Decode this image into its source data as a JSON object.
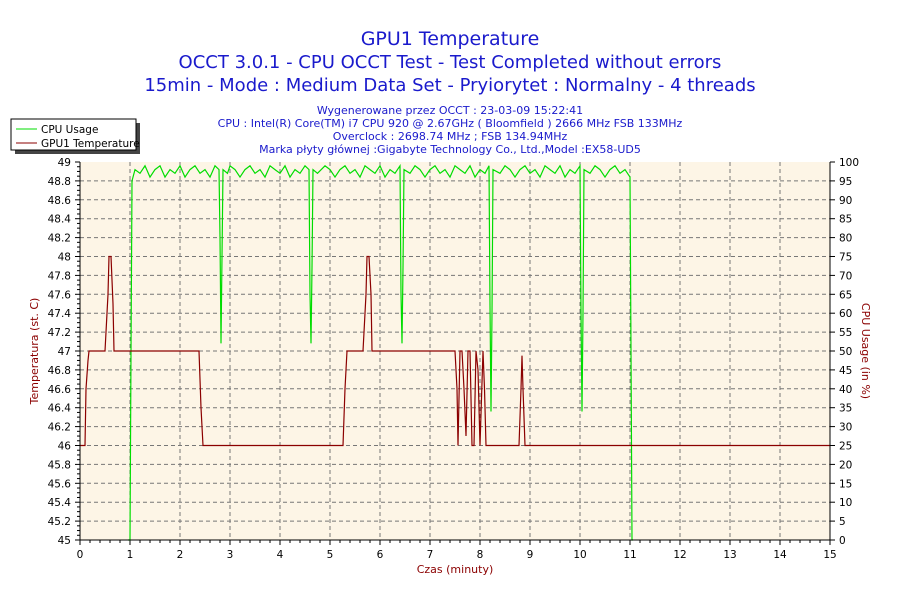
{
  "chart_data": {
    "type": "line",
    "title": "GPU1 Temperature",
    "subtitle_lines": [
      "OCCT 3.0.1 - CPU OCCT Test - Test Completed without errors",
      "15min - Mode : Medium Data Set - Pryiorytet : Normalny - 4 threads"
    ],
    "info_lines": [
      "Wygenerowane przez OCCT : 23-03-09 15:22:41",
      "CPU : Intel(R) Core(TM) i7 CPU 920 @ 2.67GHz ( Bloomfield ) 2666 MHz FSB 133MHz",
      "Overclock : 2698.74 MHz ; FSB 134.94MHz",
      "Marka płyty głównej :Gigabyte Technology Co., Ltd.,Model :EX58-UD5"
    ],
    "xlabel": "Czas (minuty)",
    "ylabel": "Temperatura (st. C)",
    "y2label": "CPU Usage (in %)",
    "xlim": [
      0,
      15
    ],
    "ylim": [
      45,
      49
    ],
    "y2lim": [
      0,
      100
    ],
    "xticks": [
      "0",
      "1",
      "2",
      "3",
      "4",
      "5",
      "6",
      "7",
      "8",
      "9",
      "10",
      "11",
      "12",
      "13",
      "14",
      "15"
    ],
    "yticks": [
      "45",
      "45.2",
      "45.4",
      "45.6",
      "45.8",
      "46",
      "46.2",
      "46.4",
      "46.6",
      "46.8",
      "47",
      "47.2",
      "47.4",
      "47.6",
      "47.8",
      "48",
      "48.2",
      "48.4",
      "48.6",
      "48.8",
      "49"
    ],
    "y2ticks": [
      "0",
      "5",
      "10",
      "15",
      "20",
      "25",
      "30",
      "35",
      "40",
      "45",
      "50",
      "55",
      "60",
      "65",
      "70",
      "75",
      "80",
      "85",
      "90",
      "95",
      "100"
    ],
    "grid": true,
    "legend_position": "top-left",
    "colors": {
      "cpu": "#00dd00",
      "temp": "#8b0000",
      "title": "#1a1acc",
      "plot_bg": "#fdf5e6",
      "axis_label": "#8b0000"
    },
    "series": [
      {
        "name": "CPU Usage",
        "axis": "right",
        "points": [
          [
            0.96,
            0
          ],
          [
            1.0,
            0
          ],
          [
            1.02,
            50
          ],
          [
            1.04,
            95
          ],
          [
            1.1,
            98
          ],
          [
            1.2,
            97
          ],
          [
            1.3,
            99
          ],
          [
            1.4,
            96
          ],
          [
            1.5,
            98
          ],
          [
            1.6,
            99
          ],
          [
            1.7,
            96
          ],
          [
            1.8,
            98
          ],
          [
            1.9,
            97
          ],
          [
            2.0,
            99
          ],
          [
            2.1,
            96
          ],
          [
            2.2,
            98
          ],
          [
            2.3,
            99
          ],
          [
            2.4,
            97
          ],
          [
            2.5,
            98
          ],
          [
            2.6,
            96
          ],
          [
            2.7,
            99
          ],
          [
            2.78,
            98
          ],
          [
            2.8,
            80
          ],
          [
            2.82,
            52
          ],
          [
            2.84,
            75
          ],
          [
            2.86,
            98
          ],
          [
            2.95,
            97
          ],
          [
            3.0,
            99
          ],
          [
            3.1,
            98
          ],
          [
            3.2,
            96
          ],
          [
            3.3,
            98
          ],
          [
            3.4,
            99
          ],
          [
            3.5,
            97
          ],
          [
            3.6,
            98
          ],
          [
            3.7,
            96
          ],
          [
            3.8,
            99
          ],
          [
            3.9,
            98
          ],
          [
            4.0,
            97
          ],
          [
            4.1,
            99
          ],
          [
            4.2,
            96
          ],
          [
            4.3,
            98
          ],
          [
            4.4,
            97
          ],
          [
            4.5,
            99
          ],
          [
            4.58,
            98
          ],
          [
            4.6,
            65
          ],
          [
            4.62,
            52
          ],
          [
            4.64,
            72
          ],
          [
            4.66,
            98
          ],
          [
            4.75,
            97
          ],
          [
            4.9,
            99
          ],
          [
            5.0,
            98
          ],
          [
            5.1,
            96
          ],
          [
            5.2,
            98
          ],
          [
            5.3,
            99
          ],
          [
            5.4,
            97
          ],
          [
            5.5,
            98
          ],
          [
            5.6,
            96
          ],
          [
            5.7,
            99
          ],
          [
            5.8,
            98
          ],
          [
            5.9,
            97
          ],
          [
            6.0,
            99
          ],
          [
            6.1,
            96
          ],
          [
            6.2,
            98
          ],
          [
            6.3,
            97
          ],
          [
            6.4,
            99
          ],
          [
            6.42,
            65
          ],
          [
            6.44,
            52
          ],
          [
            6.46,
            72
          ],
          [
            6.48,
            98
          ],
          [
            6.6,
            97
          ],
          [
            6.7,
            99
          ],
          [
            6.8,
            98
          ],
          [
            6.9,
            96
          ],
          [
            7.0,
            98
          ],
          [
            7.1,
            99
          ],
          [
            7.2,
            97
          ],
          [
            7.3,
            98
          ],
          [
            7.4,
            96
          ],
          [
            7.5,
            99
          ],
          [
            7.6,
            98
          ],
          [
            7.7,
            97
          ],
          [
            7.8,
            99
          ],
          [
            7.9,
            96
          ],
          [
            8.0,
            98
          ],
          [
            8.1,
            97
          ],
          [
            8.18,
            99
          ],
          [
            8.2,
            62
          ],
          [
            8.22,
            34
          ],
          [
            8.24,
            60
          ],
          [
            8.26,
            98
          ],
          [
            8.4,
            97
          ],
          [
            8.5,
            99
          ],
          [
            8.6,
            98
          ],
          [
            8.7,
            96
          ],
          [
            8.8,
            98
          ],
          [
            8.9,
            99
          ],
          [
            9.0,
            97
          ],
          [
            9.1,
            98
          ],
          [
            9.2,
            96
          ],
          [
            9.3,
            99
          ],
          [
            9.4,
            98
          ],
          [
            9.5,
            97
          ],
          [
            9.6,
            99
          ],
          [
            9.7,
            96
          ],
          [
            9.8,
            98
          ],
          [
            9.9,
            97
          ],
          [
            10.0,
            99
          ],
          [
            10.02,
            60
          ],
          [
            10.04,
            34
          ],
          [
            10.06,
            60
          ],
          [
            10.08,
            98
          ],
          [
            10.2,
            97
          ],
          [
            10.3,
            99
          ],
          [
            10.4,
            98
          ],
          [
            10.5,
            96
          ],
          [
            10.6,
            98
          ],
          [
            10.7,
            99
          ],
          [
            10.8,
            97
          ],
          [
            10.9,
            98
          ],
          [
            11.0,
            96
          ],
          [
            11.02,
            50
          ],
          [
            11.04,
            0
          ],
          [
            11.06,
            0
          ]
        ]
      },
      {
        "name": "GPU1 Temperature",
        "axis": "left",
        "points": [
          [
            0.0,
            46
          ],
          [
            0.1,
            46
          ],
          [
            0.12,
            46.6
          ],
          [
            0.16,
            46.9
          ],
          [
            0.18,
            47
          ],
          [
            0.5,
            47
          ],
          [
            0.56,
            47.6
          ],
          [
            0.58,
            48
          ],
          [
            0.62,
            48
          ],
          [
            0.66,
            47.5
          ],
          [
            0.68,
            47
          ],
          [
            2.38,
            47
          ],
          [
            2.42,
            46.4
          ],
          [
            2.46,
            46
          ],
          [
            5.26,
            46
          ],
          [
            5.3,
            46.6
          ],
          [
            5.34,
            47
          ],
          [
            5.66,
            47
          ],
          [
            5.72,
            47.6
          ],
          [
            5.74,
            48
          ],
          [
            5.78,
            48
          ],
          [
            5.82,
            47.6
          ],
          [
            5.84,
            47
          ],
          [
            7.5,
            47
          ],
          [
            7.54,
            46.6
          ],
          [
            7.56,
            46
          ],
          [
            7.6,
            47
          ],
          [
            7.64,
            47
          ],
          [
            7.68,
            46.6
          ],
          [
            7.72,
            46.1
          ],
          [
            7.76,
            47
          ],
          [
            7.8,
            47
          ],
          [
            7.84,
            46
          ],
          [
            7.88,
            46
          ],
          [
            7.92,
            47
          ],
          [
            7.96,
            46.8
          ],
          [
            8.0,
            46
          ],
          [
            8.03,
            46.5
          ],
          [
            8.06,
            47
          ],
          [
            8.09,
            46.6
          ],
          [
            8.12,
            46
          ],
          [
            8.78,
            46
          ],
          [
            8.82,
            46.6
          ],
          [
            8.84,
            46.95
          ],
          [
            8.86,
            46.6
          ],
          [
            8.9,
            46
          ],
          [
            15.0,
            46
          ]
        ]
      }
    ]
  }
}
